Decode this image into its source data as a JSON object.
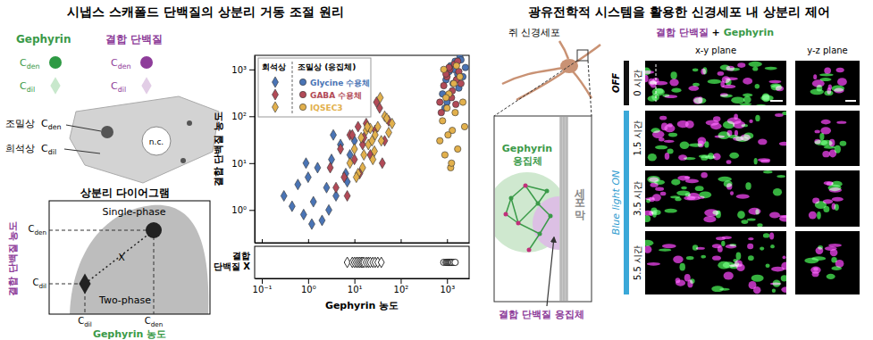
{
  "title_left": "시냅스 스캐폴드 단백질의 상분리 거동 조절 원리",
  "title_right": "광유전학적 시스템을 활용한 신경세포 내 상분리 제어",
  "schematic": {
    "legend": {
      "gephyrin": "Gephyrin",
      "binding": "결합 단백질",
      "c_den": {
        "main": "C",
        "sub": "den"
      },
      "c_dil": {
        "main": "C",
        "sub": "dil"
      }
    },
    "cell": {
      "dense_label": "조밀상",
      "dilute_label": "희석상",
      "nucleus": "n.c."
    },
    "phase_diagram": {
      "title": "상분리 다이어그램",
      "single": "Single-phase",
      "two": "Two-phase",
      "mark": "X",
      "ylabel": "결합 단백질 농도",
      "xlabel": "Gephyrin 농도"
    }
  },
  "chart_data": [
    {
      "type": "scatter",
      "ylabel": "결합 단백질 농도",
      "phase_labels": [
        "회석상",
        "조밀상 (응집체)"
      ],
      "legend": "upper left",
      "log": true,
      "xlim": [
        0.07,
        3000
      ],
      "ylim": [
        0.2,
        2000
      ],
      "xticks": [
        0.1,
        1,
        10,
        100,
        1000
      ],
      "yticks": [
        {
          "value": 1,
          "label": "10⁰"
        },
        {
          "value": 10,
          "label": "10¹"
        },
        {
          "value": 100,
          "label": "10²"
        },
        {
          "value": 1000,
          "label": "10³"
        }
      ],
      "tick_labels": "y",
      "series": [
        {
          "name": "Glycine 수용체",
          "color": "#4a74b5",
          "dilute": {
            "marker": "diamond",
            "x": [
              0.3,
              0.45,
              0.6,
              0.8,
              1.0,
              1.3,
              1.6,
              2.0,
              2.5,
              3.2,
              4.0,
              5.0,
              6.5,
              8.0,
              10,
              1.2,
              2.8,
              0.9,
              3.5,
              7
            ],
            "values": [
              2.0,
              1.2,
              3.5,
              0.8,
              5,
              1.5,
              8,
              0.6,
              3,
              12,
              2,
              25,
              6,
              15,
              30,
              0.5,
              1.0,
              10,
              40,
              4
            ]
          },
          "dense": {
            "marker": "circle",
            "x": [
              800,
              950,
              1100,
              1200,
              1350,
              1500,
              1700,
              1900,
              2200,
              2500,
              1000,
              1800,
              1400,
              2000,
              900
            ],
            "values": [
              300,
              600,
              900,
              1200,
              500,
              1500,
              800,
              1800,
              700,
              1100,
              200,
              400,
              1000,
              1600,
              150
            ]
          }
        },
        {
          "name": "GABA 수용체",
          "color": "#b24a57",
          "dilute": {
            "marker": "diamond",
            "x": [
              3,
              4,
              5,
              6,
              8,
              10,
              12,
              15,
              18,
              22,
              28,
              35,
              45,
              55,
              7,
              13,
              30,
              9,
              40,
              16
            ],
            "values": [
              8,
              3,
              20,
              5,
              40,
              12,
              60,
              25,
              70,
              15,
              50,
              150,
              30,
              80,
              2,
              6,
              200,
              40,
              10,
              35
            ]
          },
          "dense": {
            "marker": "circle",
            "x": [
              700,
              850,
              1000,
              1150,
              1300,
              1450,
              1600,
              1800,
              2000,
              750,
              1250,
              1700,
              950,
              1550,
              1100
            ],
            "values": [
              200,
              450,
              700,
              1000,
              350,
              1300,
              600,
              900,
              500,
              120,
              250,
              1500,
              800,
              180,
              1100
            ]
          }
        },
        {
          "name": "IQSEC3",
          "color": "#e2b04c",
          "dilute": {
            "marker": "diamond",
            "x": [
              8,
              10,
              12,
              14,
              16,
              18,
              20,
              22,
              25,
              28,
              32,
              38,
              45,
              55,
              65,
              11,
              19,
              27,
              36,
              50,
              15,
              24
            ],
            "values": [
              10,
              20,
              6,
              35,
              15,
              50,
              25,
              55,
              12,
              40,
              60,
              30,
              100,
              45,
              70,
              5,
              60,
              18,
              250,
              90,
              8,
              30
            ]
          },
          "dense": {
            "marker": "circle",
            "x": [
              700,
              800,
              900,
              1000,
              1100,
              1200,
              1300,
              1400,
              1500,
              1700,
              1900,
              2200,
              850,
              1050,
              1600,
              2400,
              950,
              1250
            ],
            "values": [
              30,
              80,
              15,
              150,
              300,
              8,
              50,
              500,
              120,
              20,
              700,
              200,
              1000,
              40,
              1200,
              60,
              250,
              10
            ]
          }
        }
      ]
    },
    {
      "type": "strip",
      "ylabel": [
        "결합",
        "단백질 X"
      ],
      "xlabel": "Gephyrin 농도",
      "log": "x",
      "xlim": [
        0.07,
        3000
      ],
      "xticks": [
        {
          "value": 0.1,
          "label": "10⁻¹"
        },
        {
          "value": 1,
          "label": "10⁰"
        },
        {
          "value": 10,
          "label": "10¹"
        },
        {
          "value": 100,
          "label": "10²"
        },
        {
          "value": 1000,
          "label": "10³"
        }
      ],
      "series": [
        {
          "marker": "diamond",
          "color": "#ffffff",
          "x": [
            7,
            9,
            10,
            11,
            12,
            13,
            14,
            15,
            16,
            18,
            20,
            22,
            25,
            28,
            32,
            38
          ]
        },
        {
          "marker": "circle",
          "color": "#ffffff",
          "x": [
            850,
            950,
            1000,
            1050,
            1100,
            1150,
            1200,
            1250,
            1300,
            1400,
            1500
          ]
        }
      ]
    }
  ],
  "neuron_panel": {
    "label": "쥐 신경세포",
    "gephyrin_cluster": [
      "Gephyrin",
      "응집체"
    ],
    "membrane": "세포막",
    "binding_cluster": "결합 단백질 응집체",
    "header": {
      "binding": "결합 단백질",
      "plus": " + ",
      "gephyrin": "Gephyrin"
    },
    "planes": [
      "x-y plane",
      "y-z plane"
    ],
    "off": "OFF",
    "on": "Blue light ON",
    "times": [
      "0 시간",
      "1.5 시간",
      "3.5 시간",
      "5.5 시간"
    ]
  }
}
